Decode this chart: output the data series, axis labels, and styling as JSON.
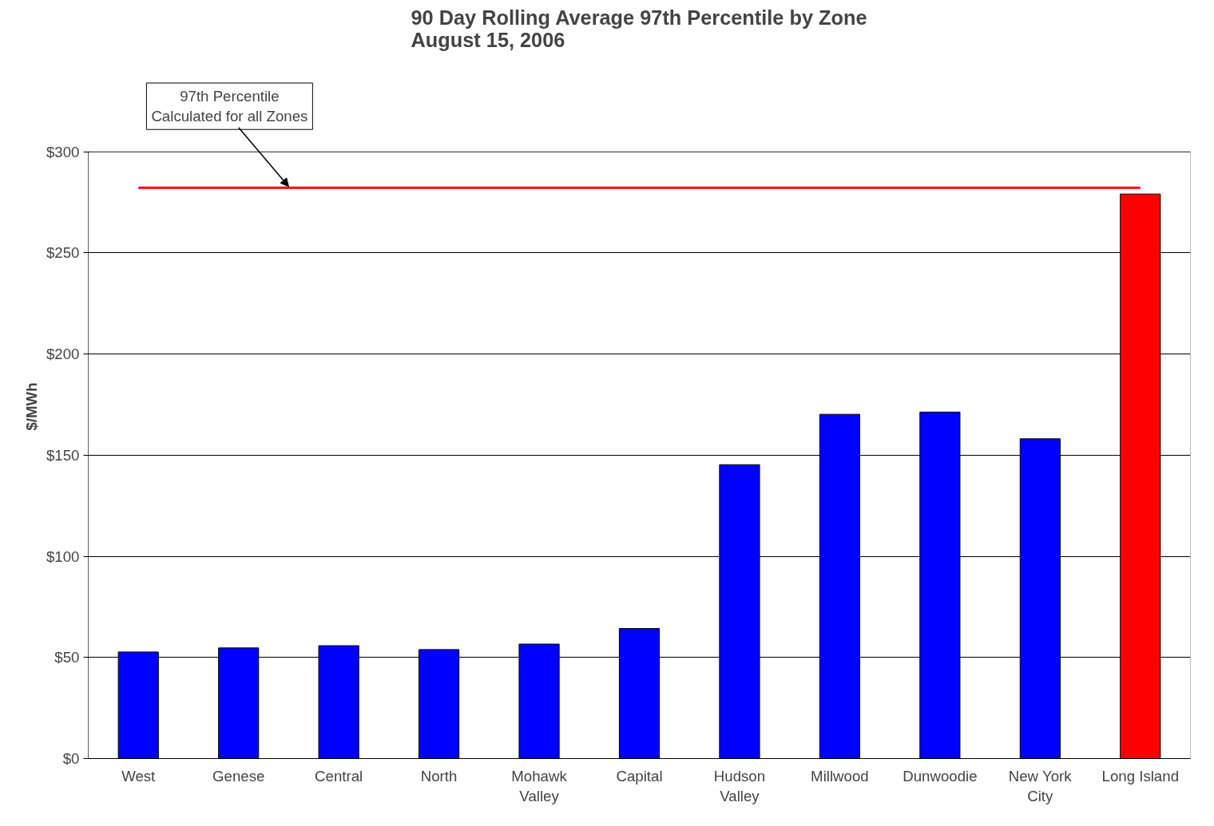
{
  "chart_data": {
    "type": "bar",
    "title": "90 Day Rolling Average 97th Percentile by Zone\nAugust 15, 2006",
    "ylabel": "$/MWh",
    "categories": [
      "West",
      "Genese",
      "Central",
      "North",
      "Mohawk\nValley",
      "Capital",
      "Hudson\nValley",
      "Millwood",
      "Dunwoodie",
      "New York\nCity",
      "Long Island"
    ],
    "values": [
      52.7,
      54.7,
      55.8,
      53.9,
      56.6,
      64.3,
      145.3,
      170.2,
      171.3,
      158.1,
      279.1
    ],
    "colors": [
      "#0000ff",
      "#0000ff",
      "#0000ff",
      "#0000ff",
      "#0000ff",
      "#0000ff",
      "#0000ff",
      "#0000ff",
      "#0000ff",
      "#0000ff",
      "#ff0000"
    ],
    "ylim": [
      0,
      300
    ],
    "yticks": [
      {
        "value": 0,
        "label": "$0"
      },
      {
        "value": 50,
        "label": "$50"
      },
      {
        "value": 100,
        "label": "$100"
      },
      {
        "value": 150,
        "label": "$150"
      },
      {
        "value": 200,
        "label": "$200"
      },
      {
        "value": 250,
        "label": "$250"
      },
      {
        "value": 300,
        "label": "$300"
      }
    ],
    "grid": "y",
    "ref_lines": [
      {
        "axis": "y",
        "value": 282.2,
        "label": "97th Percentile\nCalculated for all Zones",
        "color": "#ff0000"
      }
    ]
  }
}
